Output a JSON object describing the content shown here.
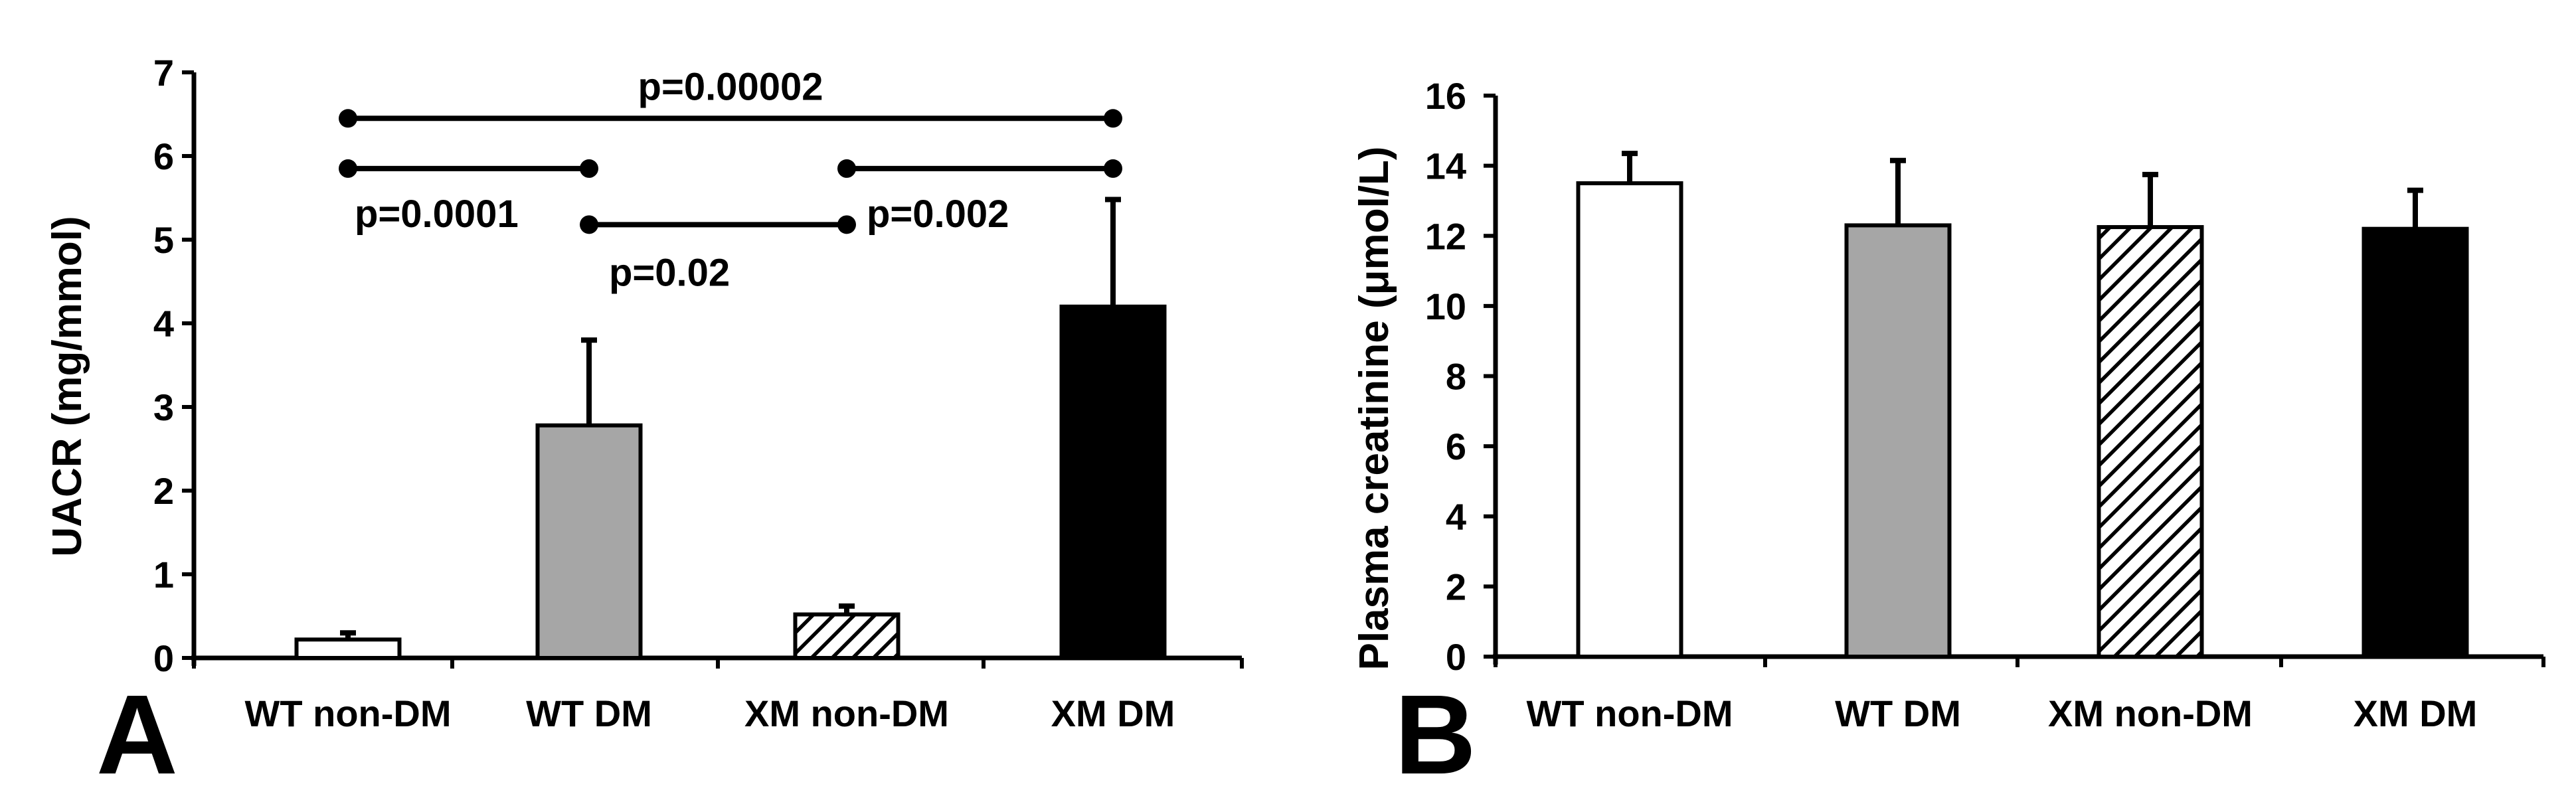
{
  "chart_data": [
    {
      "panel": "A",
      "type": "bar",
      "categories": [
        "WT non-DM",
        "WT DM",
        "XM non-DM",
        "XM DM"
      ],
      "values": [
        0.22,
        2.78,
        0.52,
        4.2
      ],
      "errors": [
        0.08,
        1.02,
        0.1,
        1.28
      ],
      "ylabel": "UACR (mg/mmol)",
      "ylim": [
        0,
        7
      ],
      "yticks": [
        0,
        1,
        2,
        3,
        4,
        5,
        6,
        7
      ],
      "fills": [
        "white",
        "#a6a6a6",
        "hatch",
        "#000000"
      ],
      "annotations": [
        {
          "from": 0,
          "to": 3,
          "label": "p=0.00002",
          "y": 6.45
        },
        {
          "from": 0,
          "to": 1,
          "label": "p=0.0001",
          "y": 5.85
        },
        {
          "from": 2,
          "to": 3,
          "label": "p=0.002",
          "y": 5.85
        },
        {
          "from": 1,
          "to": 2,
          "label": "p=0.02",
          "y": 5.18
        }
      ]
    },
    {
      "panel": "B",
      "type": "bar",
      "categories": [
        "WT non-DM",
        "WT DM",
        "XM non-DM",
        "XM DM"
      ],
      "values": [
        13.5,
        12.3,
        12.25,
        12.2
      ],
      "errors": [
        0.85,
        1.85,
        1.5,
        1.1
      ],
      "ylabel": "Plasma creatinine (μmol/L)",
      "ylim": [
        0,
        16
      ],
      "yticks": [
        0,
        2,
        4,
        6,
        8,
        10,
        12,
        14,
        16
      ],
      "fills": [
        "white",
        "#a6a6a6",
        "hatch",
        "#000000"
      ]
    }
  ]
}
